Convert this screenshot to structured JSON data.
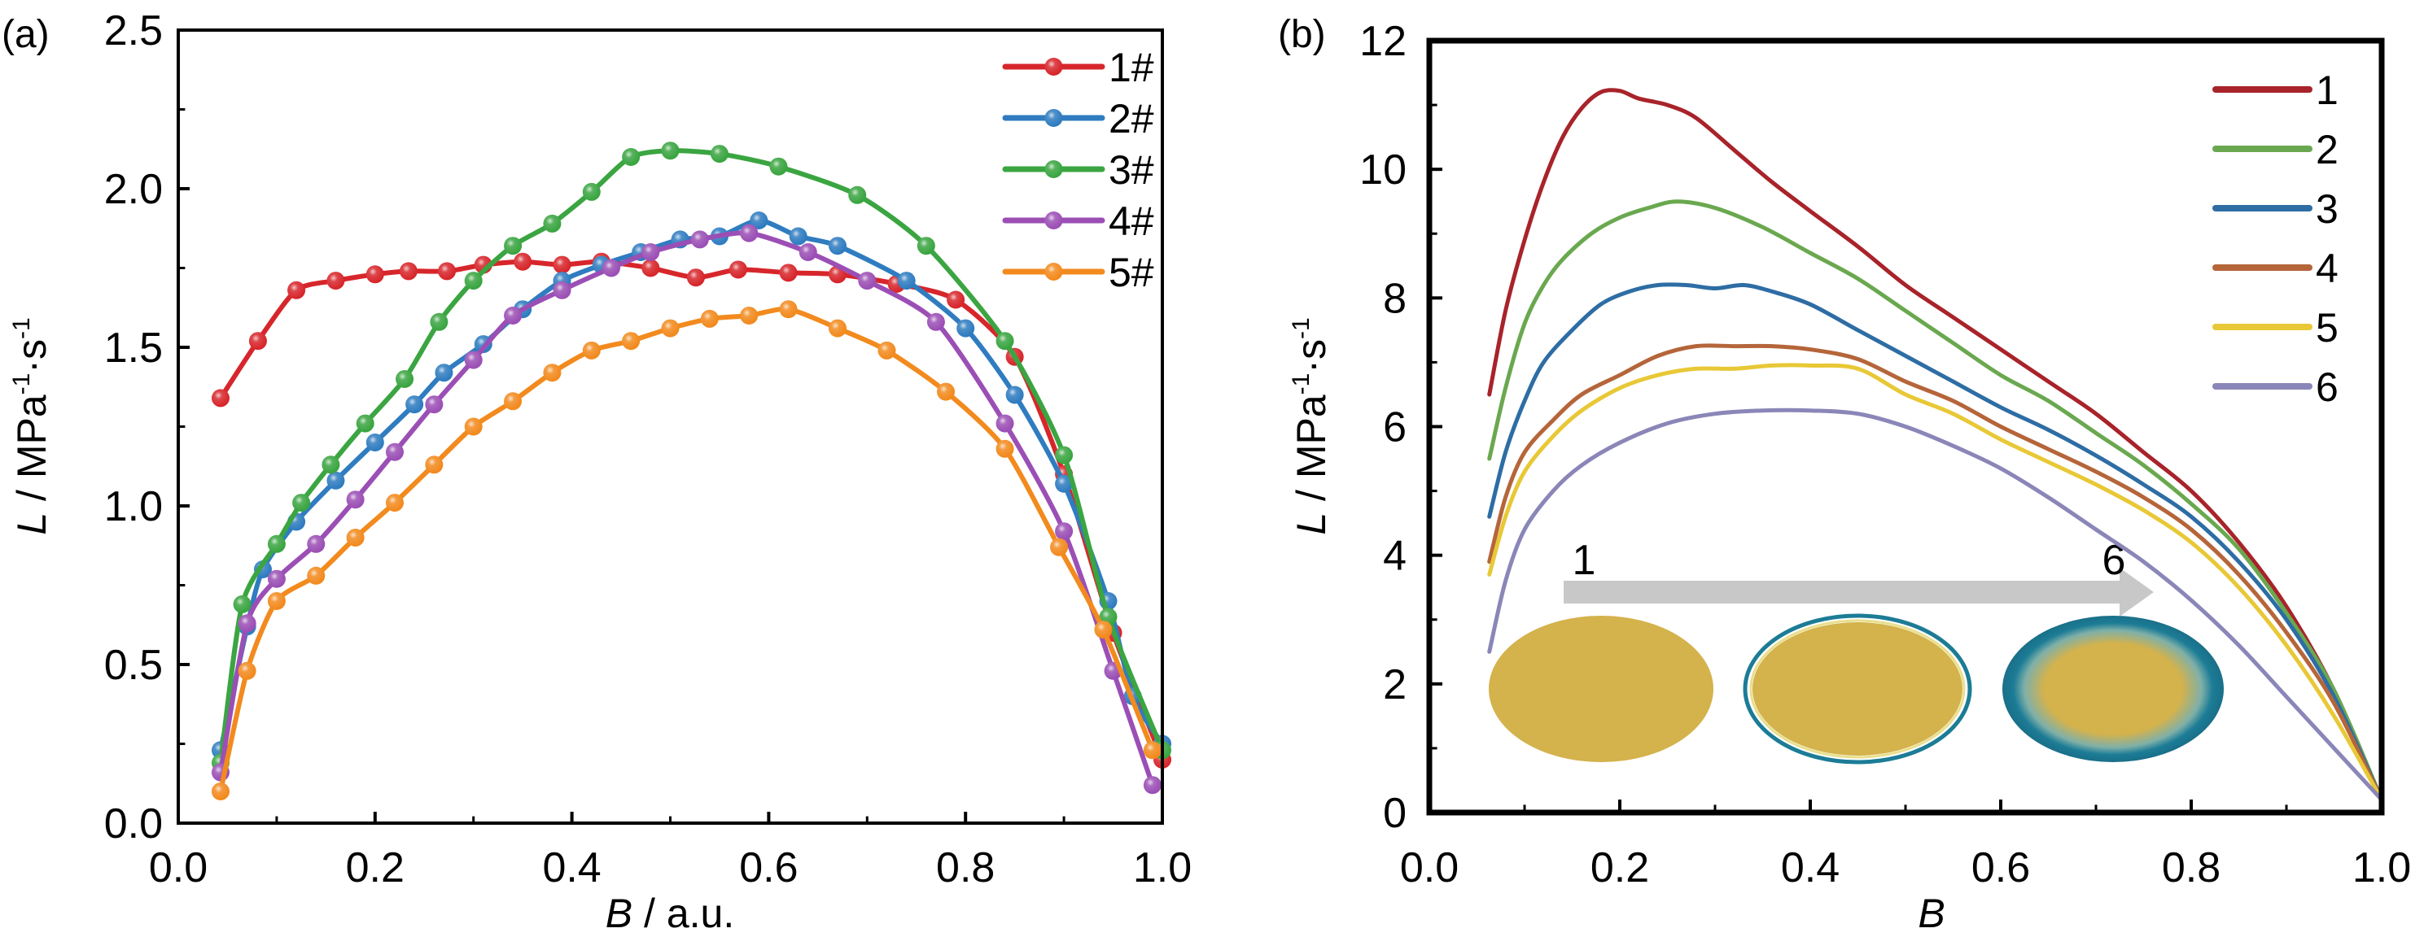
{
  "chart_data": [
    {
      "panel_label": "(a)",
      "type": "line",
      "title": "",
      "xlabel_italic": "B",
      "xlabel_rest": " / a.u.",
      "ylabel_italic": "L",
      "ylabel_rest": " / MPa",
      "ylabel_sup1": "-1",
      "ylabel_mid": "·s",
      "ylabel_sup2": "-1",
      "xlim": [
        0.0,
        1.0
      ],
      "ylim": [
        0.0,
        2.5
      ],
      "xticks": [
        "0.0",
        "0.2",
        "0.4",
        "0.6",
        "0.8",
        "1.0"
      ],
      "xtick_values": [
        0.0,
        0.2,
        0.4,
        0.6,
        0.8,
        1.0
      ],
      "xminor": [
        0.1,
        0.3,
        0.5,
        0.7,
        0.9
      ],
      "yticks": [
        "0.0",
        "0.5",
        "1.0",
        "1.5",
        "2.0",
        "2.5"
      ],
      "ytick_values": [
        0.0,
        0.5,
        1.0,
        1.5,
        2.0,
        2.5
      ],
      "yminor": [
        0.25,
        0.75,
        1.25,
        1.75,
        2.25
      ],
      "grid": false,
      "legend_position": "top-right",
      "markers": true,
      "series": [
        {
          "name": "1#",
          "color": "#d7262b",
          "x": [
            0.043,
            0.081,
            0.12,
            0.16,
            0.2,
            0.234,
            0.273,
            0.31,
            0.35,
            0.39,
            0.43,
            0.48,
            0.526,
            0.569,
            0.62,
            0.67,
            0.73,
            0.79,
            0.85,
            0.9,
            0.95,
            1.0
          ],
          "y": [
            1.34,
            1.52,
            1.68,
            1.71,
            1.73,
            1.74,
            1.74,
            1.76,
            1.77,
            1.76,
            1.77,
            1.75,
            1.72,
            1.745,
            1.735,
            1.73,
            1.7,
            1.65,
            1.47,
            1.1,
            0.6,
            0.2
          ]
        },
        {
          "name": "2#",
          "color": "#2f7cc0",
          "x": [
            0.043,
            0.07,
            0.086,
            0.12,
            0.16,
            0.2,
            0.24,
            0.27,
            0.31,
            0.35,
            0.39,
            0.43,
            0.47,
            0.51,
            0.55,
            0.59,
            0.63,
            0.67,
            0.74,
            0.8,
            0.85,
            0.9,
            0.945,
            0.97,
            1.0
          ],
          "y": [
            0.23,
            0.62,
            0.8,
            0.95,
            1.08,
            1.2,
            1.32,
            1.42,
            1.51,
            1.62,
            1.71,
            1.76,
            1.8,
            1.84,
            1.85,
            1.9,
            1.85,
            1.82,
            1.71,
            1.56,
            1.35,
            1.07,
            0.7,
            0.4,
            0.25
          ]
        },
        {
          "name": "3#",
          "color": "#3aa541",
          "x": [
            0.043,
            0.065,
            0.1,
            0.125,
            0.155,
            0.19,
            0.23,
            0.265,
            0.3,
            0.34,
            0.38,
            0.42,
            0.46,
            0.5,
            0.55,
            0.61,
            0.69,
            0.76,
            0.84,
            0.9,
            0.945,
            1.0
          ],
          "y": [
            0.19,
            0.69,
            0.88,
            1.01,
            1.13,
            1.26,
            1.4,
            1.58,
            1.71,
            1.82,
            1.89,
            1.99,
            2.1,
            2.12,
            2.11,
            2.07,
            1.98,
            1.82,
            1.52,
            1.16,
            0.65,
            0.23
          ]
        },
        {
          "name": "4#",
          "color": "#9b4fb5",
          "x": [
            0.043,
            0.07,
            0.1,
            0.14,
            0.18,
            0.22,
            0.26,
            0.3,
            0.34,
            0.39,
            0.44,
            0.48,
            0.53,
            0.58,
            0.64,
            0.7,
            0.77,
            0.84,
            0.9,
            0.95,
            0.99
          ],
          "y": [
            0.16,
            0.63,
            0.77,
            0.88,
            1.02,
            1.17,
            1.32,
            1.46,
            1.6,
            1.68,
            1.75,
            1.8,
            1.84,
            1.86,
            1.8,
            1.71,
            1.58,
            1.26,
            0.92,
            0.48,
            0.12
          ]
        },
        {
          "name": "5#",
          "color": "#f28a1e",
          "x": [
            0.043,
            0.07,
            0.1,
            0.14,
            0.18,
            0.22,
            0.26,
            0.3,
            0.34,
            0.38,
            0.42,
            0.46,
            0.5,
            0.54,
            0.58,
            0.62,
            0.67,
            0.72,
            0.78,
            0.84,
            0.895,
            0.94,
            0.99
          ],
          "y": [
            0.1,
            0.48,
            0.7,
            0.78,
            0.9,
            1.01,
            1.13,
            1.25,
            1.33,
            1.42,
            1.49,
            1.52,
            1.56,
            1.59,
            1.6,
            1.62,
            1.56,
            1.49,
            1.36,
            1.18,
            0.87,
            0.61,
            0.23
          ]
        }
      ]
    },
    {
      "panel_label": "(b)",
      "type": "line",
      "title": "",
      "xlabel_italic": "B",
      "xlabel_rest": "",
      "ylabel_italic": "L",
      "ylabel_rest": " / MPa",
      "ylabel_sup1": "-1",
      "ylabel_mid": "·s",
      "ylabel_sup2": "-1",
      "xlim": [
        0.0,
        1.0
      ],
      "ylim": [
        0,
        12
      ],
      "xticks": [
        "0.0",
        "0.2",
        "0.4",
        "0.6",
        "0.8",
        "1.0"
      ],
      "xtick_values": [
        0.0,
        0.2,
        0.4,
        0.6,
        0.8,
        1.0
      ],
      "xminor": [
        0.1,
        0.3,
        0.5,
        0.7,
        0.9
      ],
      "yticks": [
        "0",
        "2",
        "4",
        "6",
        "8",
        "10",
        "12"
      ],
      "ytick_values": [
        0,
        2,
        4,
        6,
        8,
        10,
        12
      ],
      "yminor": [
        1,
        3,
        5,
        7,
        9,
        11
      ],
      "grid": false,
      "legend_position": "top-right",
      "markers": false,
      "series": [
        {
          "name": "1",
          "color": "#a8232a",
          "x": [
            0.063,
            0.08,
            0.1,
            0.12,
            0.14,
            0.16,
            0.18,
            0.2,
            0.22,
            0.25,
            0.28,
            0.32,
            0.36,
            0.4,
            0.45,
            0.5,
            0.55,
            0.6,
            0.65,
            0.7,
            0.75,
            0.8,
            0.85,
            0.9,
            0.95,
            1.0
          ],
          "y": [
            6.5,
            7.8,
            8.9,
            9.8,
            10.5,
            10.95,
            11.2,
            11.22,
            11.1,
            11.0,
            10.8,
            10.3,
            9.8,
            9.35,
            8.8,
            8.2,
            7.7,
            7.2,
            6.7,
            6.2,
            5.6,
            5.0,
            4.2,
            3.2,
            1.9,
            0.2
          ]
        },
        {
          "name": "2",
          "color": "#6aa84f",
          "x": [
            0.063,
            0.08,
            0.1,
            0.12,
            0.14,
            0.17,
            0.2,
            0.23,
            0.26,
            0.3,
            0.35,
            0.4,
            0.45,
            0.5,
            0.55,
            0.6,
            0.65,
            0.7,
            0.75,
            0.8,
            0.85,
            0.9,
            0.95,
            1.0
          ],
          "y": [
            5.5,
            6.6,
            7.6,
            8.2,
            8.6,
            9.0,
            9.25,
            9.4,
            9.5,
            9.4,
            9.1,
            8.7,
            8.3,
            7.8,
            7.3,
            6.8,
            6.4,
            5.9,
            5.4,
            4.8,
            4.1,
            3.1,
            1.9,
            0.2
          ]
        },
        {
          "name": "3",
          "color": "#2e6da4",
          "x": [
            0.063,
            0.08,
            0.1,
            0.12,
            0.15,
            0.18,
            0.21,
            0.24,
            0.27,
            0.3,
            0.33,
            0.36,
            0.4,
            0.45,
            0.5,
            0.55,
            0.6,
            0.65,
            0.7,
            0.75,
            0.8,
            0.85,
            0.9,
            0.95,
            1.0
          ],
          "y": [
            4.6,
            5.6,
            6.4,
            7.0,
            7.5,
            7.9,
            8.1,
            8.2,
            8.2,
            8.15,
            8.2,
            8.1,
            7.9,
            7.5,
            7.1,
            6.7,
            6.3,
            5.95,
            5.55,
            5.1,
            4.6,
            3.9,
            3.0,
            1.8,
            0.2
          ]
        },
        {
          "name": "4",
          "color": "#b5653a",
          "x": [
            0.063,
            0.08,
            0.1,
            0.13,
            0.16,
            0.2,
            0.24,
            0.28,
            0.32,
            0.36,
            0.4,
            0.45,
            0.5,
            0.55,
            0.6,
            0.65,
            0.7,
            0.75,
            0.8,
            0.85,
            0.9,
            0.95,
            1.0
          ],
          "y": [
            3.9,
            4.9,
            5.6,
            6.1,
            6.5,
            6.8,
            7.1,
            7.25,
            7.25,
            7.25,
            7.2,
            7.05,
            6.7,
            6.4,
            6.0,
            5.65,
            5.3,
            4.9,
            4.4,
            3.7,
            2.8,
            1.7,
            0.2
          ]
        },
        {
          "name": "5",
          "color": "#e8c836",
          "x": [
            0.063,
            0.08,
            0.1,
            0.13,
            0.16,
            0.2,
            0.24,
            0.28,
            0.32,
            0.36,
            0.4,
            0.45,
            0.5,
            0.55,
            0.6,
            0.65,
            0.7,
            0.75,
            0.8,
            0.85,
            0.9,
            0.95,
            1.0
          ],
          "y": [
            3.7,
            4.6,
            5.3,
            5.85,
            6.25,
            6.6,
            6.8,
            6.9,
            6.9,
            6.95,
            6.95,
            6.9,
            6.5,
            6.2,
            5.8,
            5.45,
            5.1,
            4.7,
            4.2,
            3.5,
            2.6,
            1.5,
            0.2
          ]
        },
        {
          "name": "6",
          "color": "#8a86b8",
          "x": [
            0.063,
            0.08,
            0.1,
            0.13,
            0.16,
            0.2,
            0.25,
            0.3,
            0.35,
            0.4,
            0.45,
            0.5,
            0.55,
            0.6,
            0.65,
            0.7,
            0.75,
            0.8,
            0.85,
            0.9,
            0.95,
            1.0
          ],
          "y": [
            2.5,
            3.6,
            4.4,
            5.0,
            5.4,
            5.75,
            6.05,
            6.2,
            6.25,
            6.25,
            6.2,
            6.0,
            5.7,
            5.35,
            4.9,
            4.4,
            3.9,
            3.3,
            2.6,
            1.8,
            1.0,
            0.2
          ]
        }
      ],
      "inset": {
        "arrow_start_label": "1",
        "arrow_end_label": "6",
        "arrow_color": "#c8c8c8",
        "core_color": "#d4b24c",
        "shell_color": "#1c7c96",
        "ring_color": "#e8df8c"
      }
    }
  ]
}
